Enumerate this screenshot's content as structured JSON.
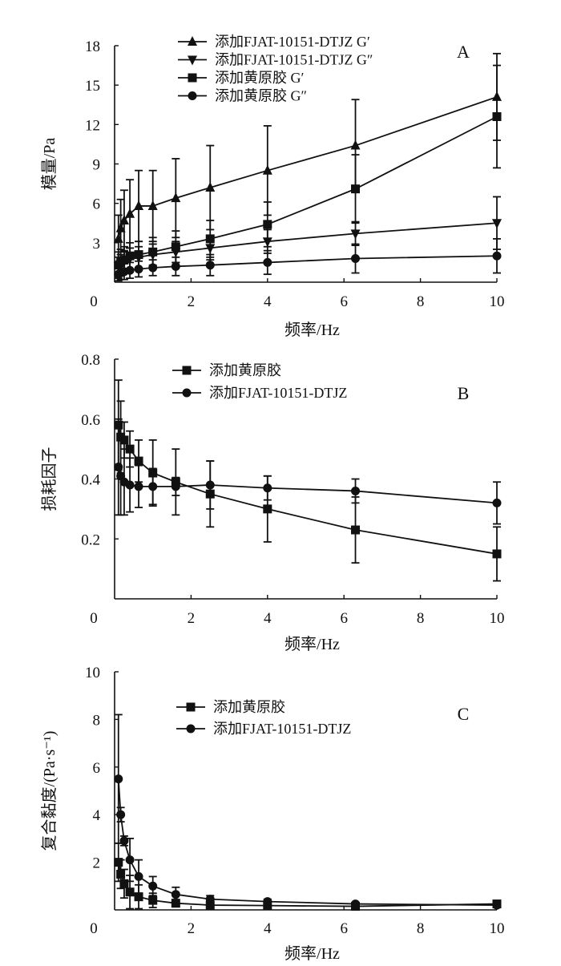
{
  "chart_data": [
    {
      "type": "line",
      "panel_label": "A",
      "xlabel": "频率/Hz",
      "ylabel": "模量/Pa",
      "xlim": [
        0,
        10
      ],
      "ylim": [
        0,
        18
      ],
      "xticks": [
        "0",
        "2",
        "4",
        "6",
        "8",
        "10"
      ],
      "yticks": [
        "3",
        "6",
        "9",
        "12",
        "15",
        "18"
      ],
      "legend_position": "top-left",
      "x": [
        0.1,
        0.16,
        0.25,
        0.4,
        0.63,
        1,
        1.6,
        2.5,
        4,
        6.3,
        10
      ],
      "series": [
        {
          "name": "添加FJAT-10151-DTJZ G′",
          "marker": "triangle",
          "values": [
            3.3,
            4.1,
            4.7,
            5.2,
            5.8,
            5.8,
            6.4,
            7.2,
            8.5,
            10.4,
            14.1
          ],
          "error": [
            1.8,
            2.2,
            2.3,
            2.6,
            2.7,
            2.7,
            3.0,
            3.2,
            3.4,
            3.5,
            3.3
          ]
        },
        {
          "name": "添加FJAT-10151-DTJZ G″",
          "marker": "triangle-down",
          "values": [
            1.2,
            1.4,
            1.6,
            1.8,
            1.9,
            2.1,
            2.3,
            2.6,
            3.1,
            3.7,
            4.5
          ],
          "error": [
            0.7,
            0.7,
            0.7,
            0.8,
            0.8,
            0.8,
            0.8,
            0.9,
            0.9,
            0.9,
            2.0
          ]
        },
        {
          "name": "添加黄原胶 G′",
          "marker": "square",
          "values": [
            1.3,
            1.5,
            1.7,
            2.0,
            2.1,
            2.3,
            2.7,
            3.3,
            4.4,
            7.1,
            12.6
          ],
          "error": [
            1.0,
            1.0,
            1.0,
            1.0,
            1.0,
            1.1,
            1.2,
            1.4,
            1.7,
            2.6,
            3.9
          ]
        },
        {
          "name": "添加黄原胶 G″",
          "marker": "circle",
          "values": [
            0.6,
            0.7,
            0.8,
            0.9,
            1.0,
            1.1,
            1.2,
            1.3,
            1.5,
            1.8,
            2.0
          ],
          "error": [
            0.5,
            0.5,
            0.6,
            0.6,
            0.6,
            0.6,
            0.7,
            0.8,
            0.9,
            1.1,
            1.3
          ]
        }
      ]
    },
    {
      "type": "line",
      "panel_label": "B",
      "xlabel": "频率/Hz",
      "ylabel": "损耗因子",
      "xlim": [
        0,
        10
      ],
      "ylim": [
        0,
        0.8
      ],
      "xticks": [
        "0",
        "2",
        "4",
        "6",
        "8",
        "10"
      ],
      "yticks": [
        "0.2",
        "0.4",
        "0.6",
        "0.8"
      ],
      "legend_position": "top-left",
      "x": [
        0.1,
        0.16,
        0.25,
        0.4,
        0.63,
        1,
        1.6,
        2.5,
        4,
        6.3,
        10
      ],
      "series": [
        {
          "name": "添加黄原胶",
          "marker": "square",
          "values": [
            0.58,
            0.54,
            0.53,
            0.5,
            0.46,
            0.42,
            0.39,
            0.35,
            0.3,
            0.23,
            0.15
          ],
          "error": [
            0.15,
            0.12,
            0.06,
            0.06,
            0.07,
            0.11,
            0.11,
            0.11,
            0.11,
            0.11,
            0.09
          ]
        },
        {
          "name": "添加FJAT-10151-DTJZ",
          "marker": "circle",
          "values": [
            0.44,
            0.41,
            0.39,
            0.38,
            0.375,
            0.375,
            0.375,
            0.38,
            0.37,
            0.36,
            0.32
          ],
          "error": [
            0.16,
            0.13,
            0.11,
            0.09,
            0.07,
            0.06,
            0.03,
            0.08,
            0.04,
            0.04,
            0.07
          ]
        }
      ]
    },
    {
      "type": "line",
      "panel_label": "C",
      "xlabel": "频率/Hz",
      "ylabel": "复合黏度/(Pa·s⁻¹)",
      "xlim": [
        0,
        10
      ],
      "ylim": [
        0,
        10
      ],
      "xticks": [
        "0",
        "2",
        "4",
        "6",
        "8",
        "10"
      ],
      "yticks": [
        "2",
        "4",
        "6",
        "8",
        "10"
      ],
      "legend_position": "top-left",
      "x": [
        0.1,
        0.16,
        0.25,
        0.4,
        0.63,
        1,
        1.6,
        2.5,
        4,
        6.3,
        10
      ],
      "series": [
        {
          "name": "添加黄原胶",
          "marker": "square",
          "values": [
            2.0,
            1.5,
            1.1,
            0.75,
            0.55,
            0.4,
            0.28,
            0.2,
            0.18,
            0.15,
            0.25
          ],
          "error": [
            0.8,
            0.6,
            0.6,
            0.7,
            0.5,
            0.3,
            0.15,
            0.1,
            0.05,
            0.05,
            0.05
          ]
        },
        {
          "name": "添加FJAT-10151-DTJZ",
          "marker": "circle",
          "values": [
            5.5,
            4.0,
            2.9,
            2.1,
            1.4,
            1.0,
            0.65,
            0.45,
            0.35,
            0.25,
            0.2
          ],
          "error": [
            2.7,
            0.3,
            0.2,
            0.9,
            0.7,
            0.4,
            0.3,
            0.15,
            0.1,
            0.05,
            0.05
          ]
        }
      ]
    }
  ]
}
